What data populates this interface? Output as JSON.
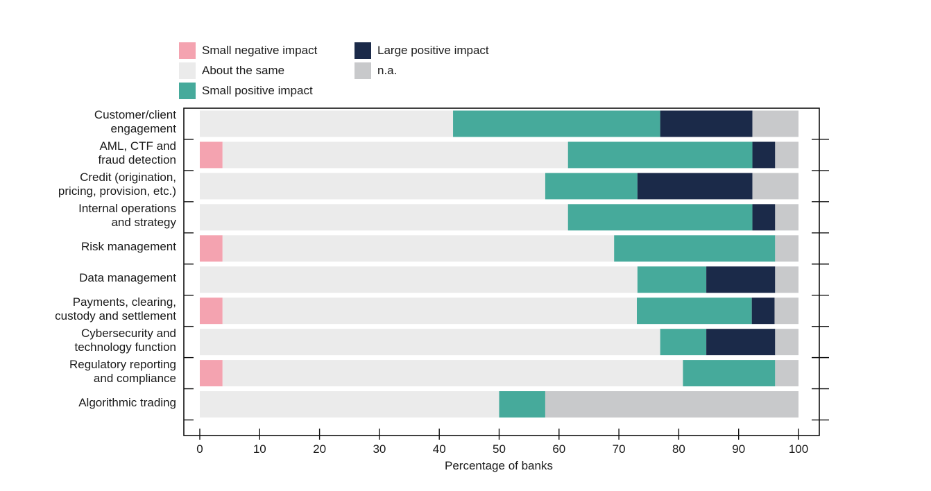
{
  "chart_data": {
    "type": "bar",
    "orientation": "horizontal",
    "stacked": true,
    "categories": [
      "Customer/client\nengagement",
      "AML, CTF and\nfraud detection",
      "Credit (origination,\npricing, provision, etc.)",
      "Internal operations\nand strategy",
      "Risk management",
      "Data management",
      "Payments, clearing,\ncustody and settlement",
      "Cybersecurity and\ntechnology function",
      "Regulatory reporting\nand compliance",
      "Algorithmic trading"
    ],
    "series": [
      {
        "name": "Small negative impact",
        "color": "#f4a3b0",
        "values": [
          0,
          3.8,
          0,
          0,
          3.8,
          0,
          3.8,
          0,
          3.8,
          0
        ]
      },
      {
        "name": "About the same",
        "color": "#ebebeb",
        "values": [
          42.3,
          57.7,
          57.7,
          61.5,
          65.4,
          73.1,
          69.2,
          76.9,
          76.9,
          50.0
        ]
      },
      {
        "name": "Small positive impact",
        "color": "#46aa9b",
        "values": [
          34.6,
          30.8,
          15.4,
          30.8,
          26.9,
          11.5,
          19.2,
          7.7,
          15.4,
          7.7
        ]
      },
      {
        "name": "Large positive impact",
        "color": "#1b2a49",
        "values": [
          15.4,
          3.8,
          19.2,
          3.8,
          0,
          11.5,
          3.8,
          11.5,
          0,
          0
        ]
      },
      {
        "name": "n.a.",
        "color": "#c8c9cb",
        "values": [
          7.7,
          3.9,
          7.7,
          3.9,
          3.9,
          3.9,
          4.0,
          3.9,
          3.9,
          42.3
        ]
      }
    ],
    "xlim": [
      0,
      100
    ],
    "xticks": [
      0,
      10,
      20,
      30,
      40,
      50,
      60,
      70,
      80,
      90,
      100
    ],
    "xlabel": "Percentage of banks",
    "ylabel": "",
    "title": "",
    "legend_position": "top-left",
    "grid": false
  }
}
